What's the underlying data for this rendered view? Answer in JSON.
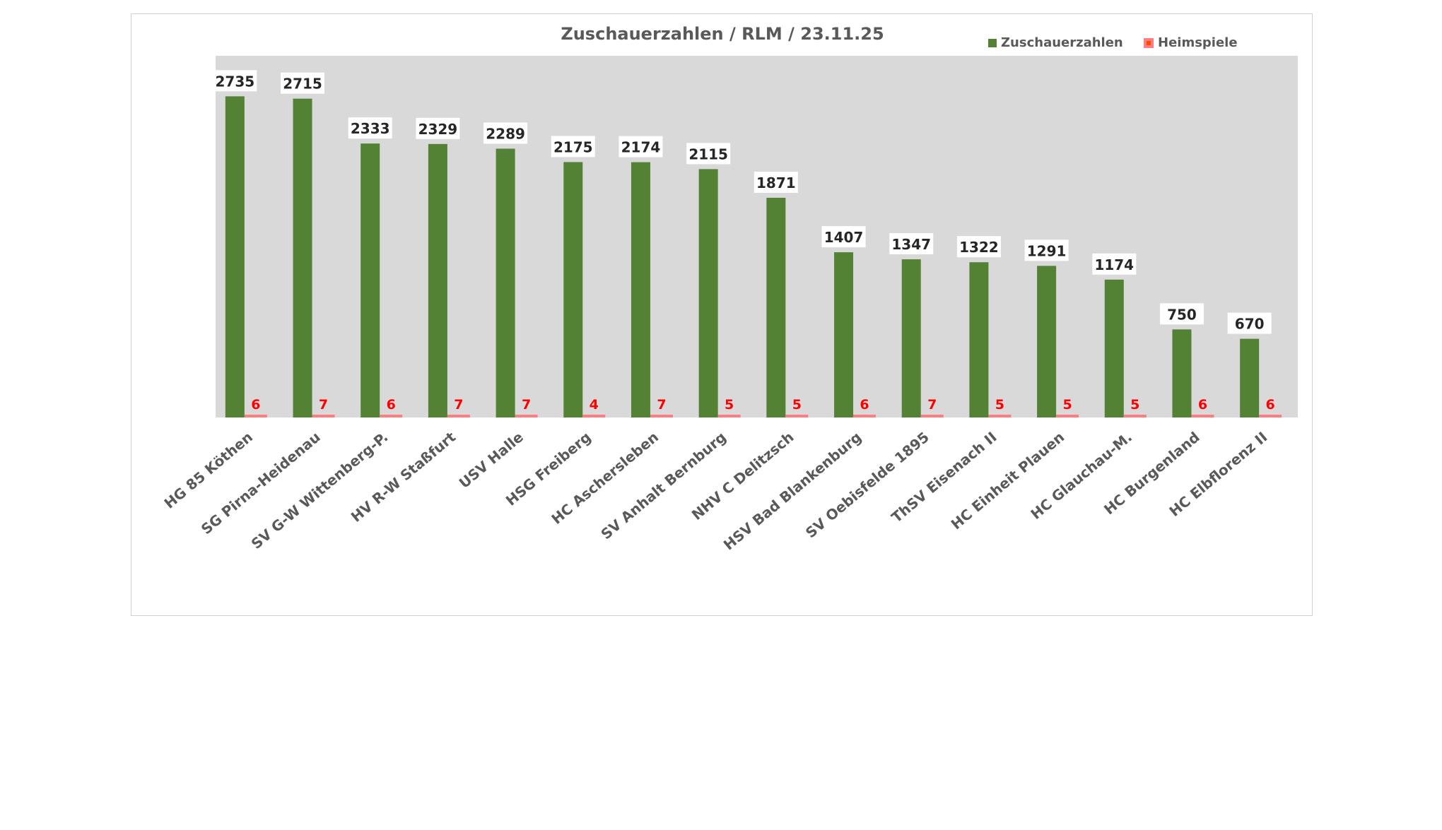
{
  "chart_data": {
    "type": "bar",
    "title": "Zuschauerzahlen / RLM / 23.11.25",
    "legend": "top-right",
    "grid": false,
    "ylim": [
      0,
      3080
    ],
    "categories": [
      "HG 85 Köthen",
      "SG Pirna-Heidenau",
      "SV G-W Wittenberg-P.",
      "HV R-W Staßfurt",
      "USV Halle",
      "HSG Freiberg",
      "HC Aschersleben",
      "SV Anhalt Bernburg",
      "NHV C Delitzsch",
      "HSV Bad Blankenburg",
      "SV Oebisfelde 1895",
      "ThSV Eisenach II",
      "HC Einheit Plauen",
      "HC Glauchau-M.",
      "HC Burgenland",
      "HC Elbflorenz II"
    ],
    "series": [
      {
        "name": "Zuschauerzahlen",
        "color": "#548235",
        "values": [
          2735,
          2715,
          2333,
          2329,
          2289,
          2175,
          2174,
          2115,
          1871,
          1407,
          1347,
          1322,
          1291,
          1174,
          750,
          670
        ]
      },
      {
        "name": "Heimspiele",
        "color": "#ff7c80",
        "values": [
          6,
          7,
          6,
          7,
          7,
          4,
          7,
          5,
          5,
          6,
          7,
          5,
          5,
          5,
          6,
          6
        ]
      }
    ],
    "plot_background": "#d9d9d9",
    "games_label_color": "#ff0000"
  }
}
